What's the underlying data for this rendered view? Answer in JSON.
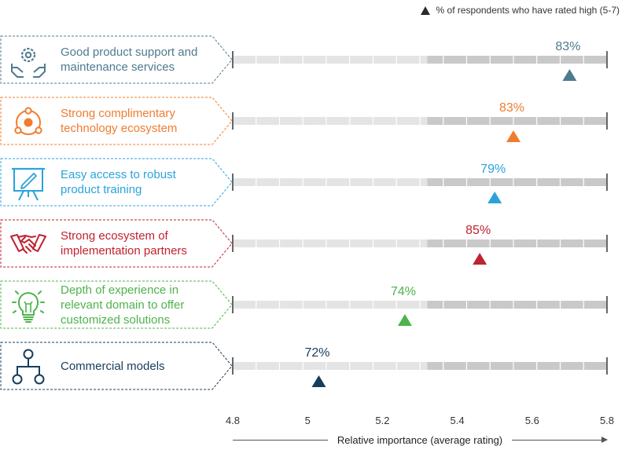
{
  "legend": {
    "label": "% of respondents who have rated high (5-7)",
    "marker": "triangle",
    "color": "#2a2a2a"
  },
  "chart_data": {
    "type": "scatter",
    "xlabel": "Relative importance (average rating)",
    "xlim": [
      4.8,
      5.8
    ],
    "xticks": [
      "4.8",
      "5",
      "5.2",
      "5.4",
      "5.6",
      "5.8"
    ],
    "grid": false,
    "legend_position": "top-right",
    "categories": [
      "Good product support and maintenance services",
      "Strong complimentary technology ecosystem",
      "Easy access to robust product training",
      "Strong ecosystem of implementation partners",
      "Depth of experience in relevant domain to offer customized solutions",
      "Commercial models"
    ],
    "values": [
      5.7,
      5.55,
      5.5,
      5.46,
      5.26,
      5.03
    ],
    "labels": [
      "83%",
      "83%",
      "79%",
      "85%",
      "74%",
      "72%"
    ]
  },
  "rows": [
    {
      "label": "Good product support and maintenance services",
      "color": "#4e7a8e",
      "icon": "hands-gear-icon",
      "pct": "83%"
    },
    {
      "label": "Strong complimentary technology ecosystem",
      "color": "#f07d2e",
      "icon": "ecosystem-orbit-icon",
      "pct": "83%"
    },
    {
      "label": "Easy access to robust product training",
      "color": "#2aa3dc",
      "icon": "presentation-board-icon",
      "pct": "79%"
    },
    {
      "label": "Strong ecosystem of implementation partners",
      "color": "#c0222f",
      "icon": "handshake-icon",
      "pct": "85%"
    },
    {
      "label": "Depth of experience in relevant domain to offer customized solutions",
      "color": "#4db34d",
      "icon": "lightbulb-icon",
      "pct": "74%"
    },
    {
      "label": "Commercial models",
      "color": "#163d5c",
      "icon": "hierarchy-icon",
      "pct": "72%"
    }
  ]
}
